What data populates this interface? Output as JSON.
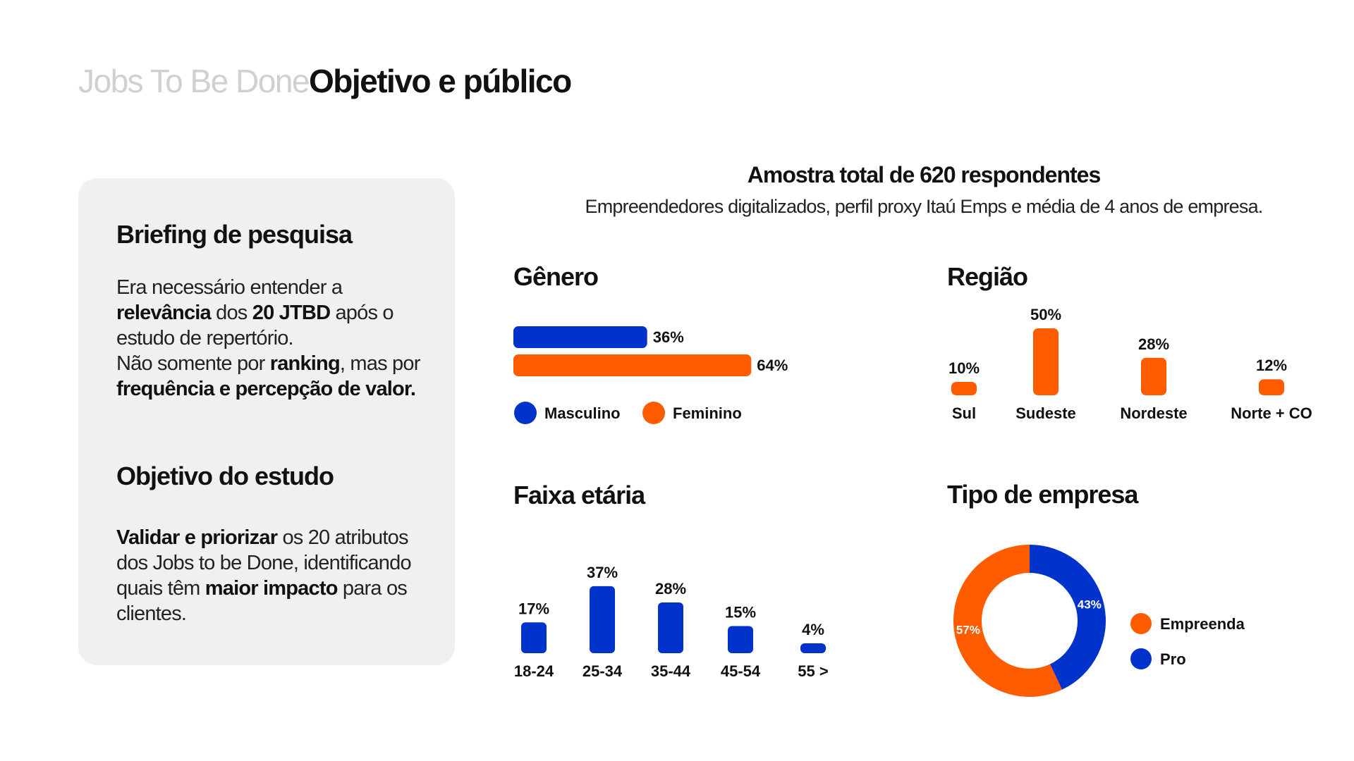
{
  "header": {
    "prefix": "Jobs To Be Done",
    "title": "Objetivo e público"
  },
  "card": {
    "briefing_title": "Briefing de pesquisa",
    "briefing_parts": [
      [
        "Era necessário entender a ",
        false
      ],
      [
        "relevância",
        true
      ],
      [
        " dos ",
        false
      ],
      [
        "20 JTBD",
        true
      ],
      [
        " após o estudo de repertório.",
        false
      ],
      [
        "\n",
        false
      ],
      [
        "Não somente por ",
        false
      ],
      [
        "ranking",
        true
      ],
      [
        ", mas por ",
        false
      ],
      [
        "frequência e percepção de valor.",
        true
      ]
    ],
    "objective_title": "Objetivo do estudo",
    "objective_parts": [
      [
        "Validar e priorizar",
        true
      ],
      [
        " os 20 atributos dos Jobs to be Done, identificando quais têm ",
        false
      ],
      [
        "maior impacto",
        true
      ],
      [
        " para os clientes.",
        false
      ]
    ]
  },
  "sample": {
    "title": "Amostra total de 620 respondentes",
    "subtitle": "Empreendedores digitalizados, perfil proxy Itaú Emps e média de 4 anos de empresa."
  },
  "colors": {
    "blue": "#0033cc",
    "orange": "#ff5c00"
  },
  "chart_data": [
    {
      "type": "bar",
      "orientation": "horizontal",
      "title": "Gênero",
      "categories": [
        "Masculino",
        "Feminino"
      ],
      "values": [
        36,
        64
      ],
      "labels": [
        "36%",
        "64%"
      ],
      "colors": [
        "#0033cc",
        "#ff5c00"
      ],
      "legend": "bottom"
    },
    {
      "type": "bar",
      "title": "Região",
      "categories": [
        "Sul",
        "Sudeste",
        "Nordeste",
        "Norte + CO"
      ],
      "values": [
        10,
        50,
        28,
        12
      ],
      "labels": [
        "10%",
        "50%",
        "28%",
        "12%"
      ],
      "color": "#ff5c00"
    },
    {
      "type": "bar",
      "title": "Faixa etária",
      "categories": [
        "18-24",
        "25-34",
        "35-44",
        "45-54",
        "55 >"
      ],
      "values": [
        17,
        37,
        28,
        15,
        4
      ],
      "labels": [
        "17%",
        "37%",
        "28%",
        "15%",
        "4%"
      ],
      "color": "#0033cc"
    },
    {
      "type": "pie",
      "donut": true,
      "title": "Tipo de empresa",
      "categories": [
        "Empreenda",
        "Pro"
      ],
      "values": [
        57,
        43
      ],
      "labels": [
        "57%",
        "43%"
      ],
      "colors": [
        "#ff5c00",
        "#0033cc"
      ],
      "legend": "right"
    }
  ]
}
